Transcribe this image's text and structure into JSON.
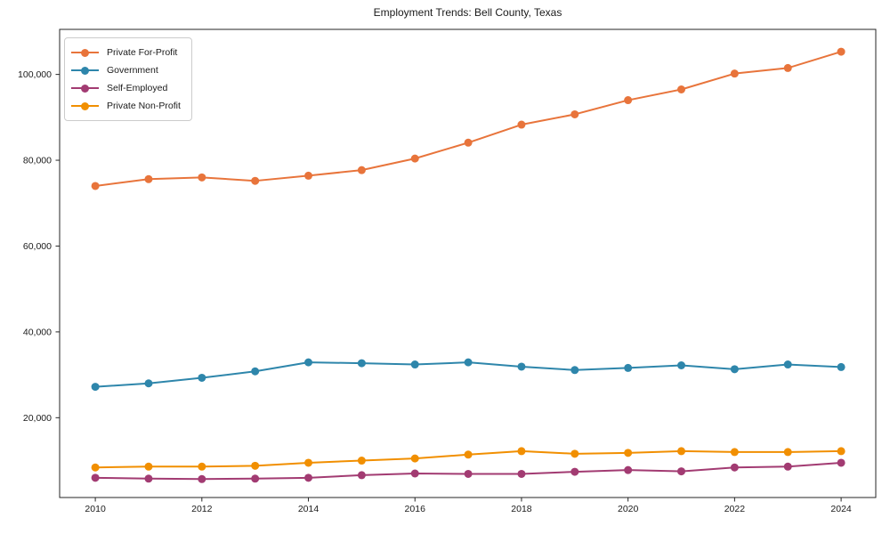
{
  "chart_data": {
    "type": "line",
    "title": "Employment Trends: Bell County, Texas",
    "xlabel": "",
    "ylabel": "",
    "grid": false,
    "legend_position": "upper left",
    "x": [
      2010,
      2011,
      2012,
      2013,
      2014,
      2015,
      2016,
      2017,
      2018,
      2019,
      2020,
      2021,
      2022,
      2023,
      2024
    ],
    "series": [
      {
        "name": "Private For-Profit",
        "color": "#E8743B",
        "values": [
          74000,
          75600,
          76000,
          75200,
          76400,
          77700,
          80400,
          84100,
          88300,
          90700,
          94000,
          96500,
          100200,
          101500,
          105300
        ]
      },
      {
        "name": "Government",
        "color": "#2E86AB",
        "values": [
          27200,
          28000,
          29300,
          30800,
          32900,
          32700,
          32400,
          32900,
          31900,
          31100,
          31600,
          32200,
          31300,
          32400,
          31800
        ]
      },
      {
        "name": "Self-Employed",
        "color": "#A23B72",
        "values": [
          6000,
          5800,
          5700,
          5800,
          6000,
          6600,
          7000,
          6900,
          6900,
          7400,
          7800,
          7500,
          8400,
          8600,
          9500
        ]
      },
      {
        "name": "Private Non-Profit",
        "color": "#F18F01",
        "values": [
          8400,
          8600,
          8600,
          8800,
          9500,
          10000,
          10500,
          11400,
          12200,
          11600,
          11800,
          12200,
          12000,
          12000,
          12200
        ]
      }
    ],
    "x_tick_years": [
      2010,
      2012,
      2014,
      2016,
      2018,
      2020,
      2022,
      2024
    ],
    "x_tick_labels": [
      "2010",
      "2012",
      "2014",
      "2016",
      "2018",
      "2020",
      "2022",
      "2024"
    ],
    "y_tick_values": [
      20000,
      40000,
      60000,
      80000,
      100000
    ],
    "y_tick_labels": [
      "20,000",
      "40,000",
      "60,000",
      "80,000",
      "100,000"
    ],
    "xlim": [
      2009.33,
      2024.65
    ],
    "ylim": [
      1400,
      110500
    ],
    "axis_color": "#262626",
    "text_color": "#1a1a1a"
  }
}
